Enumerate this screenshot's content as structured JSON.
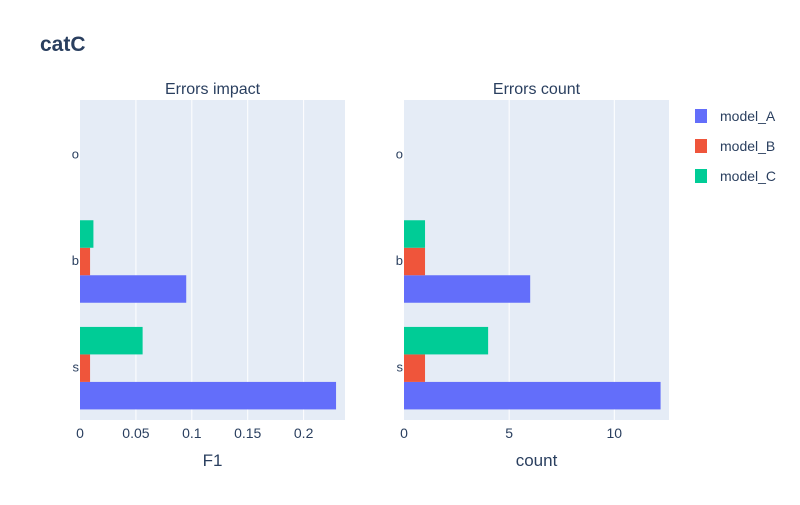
{
  "title": "catC",
  "legend": {
    "position": "top-right",
    "items": [
      "model_A",
      "model_B",
      "model_C"
    ]
  },
  "colors": {
    "model_A": "#636efa",
    "model_B": "#ef553b",
    "model_C": "#00cc96",
    "plot_bg": "#e5ecf6",
    "grid": "#ffffff",
    "text": "#2a3f5f",
    "title": "#2a3f5f"
  },
  "chart_data": [
    {
      "type": "bar",
      "orientation": "horizontal",
      "title": "Errors impact",
      "xlabel": "F1",
      "ylabel": "",
      "categories": [
        "s",
        "b",
        "o"
      ],
      "xlim": [
        0,
        0.237
      ],
      "xticks": [
        0,
        0.05,
        0.1,
        0.15,
        0.2
      ],
      "xtick_labels": [
        "0",
        "0.05",
        "0.1",
        "0.15",
        "0.2"
      ],
      "grid": true,
      "series": [
        {
          "name": "model_A",
          "values": [
            0.229,
            0.095,
            null
          ]
        },
        {
          "name": "model_B",
          "values": [
            0.009,
            0.009,
            null
          ]
        },
        {
          "name": "model_C",
          "values": [
            0.056,
            0.012,
            null
          ]
        }
      ]
    },
    {
      "type": "bar",
      "orientation": "horizontal",
      "title": "Errors count",
      "xlabel": "count",
      "ylabel": "",
      "categories": [
        "s",
        "b",
        "o"
      ],
      "xlim": [
        0,
        12.6
      ],
      "xticks": [
        0,
        5,
        10
      ],
      "xtick_labels": [
        "0",
        "5",
        "10"
      ],
      "grid": true,
      "series": [
        {
          "name": "model_A",
          "values": [
            12.2,
            6,
            null
          ]
        },
        {
          "name": "model_B",
          "values": [
            1,
            1,
            null
          ]
        },
        {
          "name": "model_C",
          "values": [
            4,
            1,
            null
          ]
        }
      ]
    }
  ]
}
